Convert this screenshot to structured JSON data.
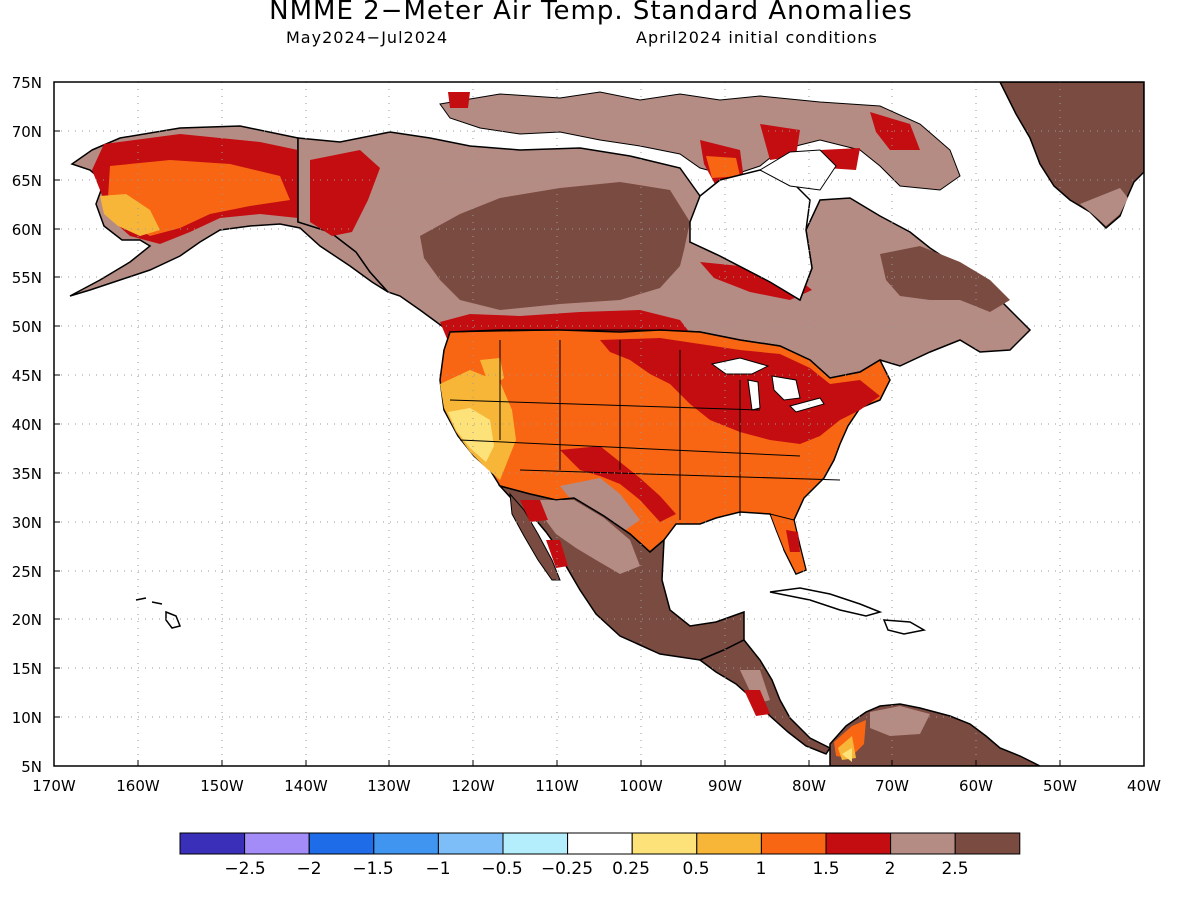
{
  "title": "NMME 2−Meter Air Temp. Standard Anomalies",
  "subtitle_left": "May2024−Jul2024",
  "subtitle_right": "April2024 initial conditions",
  "lat_labels": [
    "75N",
    "70N",
    "65N",
    "60N",
    "55N",
    "50N",
    "45N",
    "40N",
    "35N",
    "30N",
    "25N",
    "20N",
    "15N",
    "10N",
    "5N"
  ],
  "lon_labels": [
    "170W",
    "160W",
    "150W",
    "140W",
    "130W",
    "120W",
    "110W",
    "100W",
    "90W",
    "80W",
    "70W",
    "60W",
    "50W",
    "40W"
  ],
  "legend": {
    "colors": [
      "#3a2fb8",
      "#a48cf8",
      "#1f6ce8",
      "#3f95f0",
      "#7ebef8",
      "#b4eefc",
      "#ffffff",
      "#fde27a",
      "#f8b638",
      "#f86614",
      "#c40d10",
      "#b58c84",
      "#7a4b40"
    ],
    "labels": [
      "−2.5",
      "−2",
      "−1.5",
      "−1",
      "−0.5",
      "−0.25",
      "0.25",
      "0.5",
      "1",
      "1.5",
      "2",
      "2.5"
    ]
  }
}
